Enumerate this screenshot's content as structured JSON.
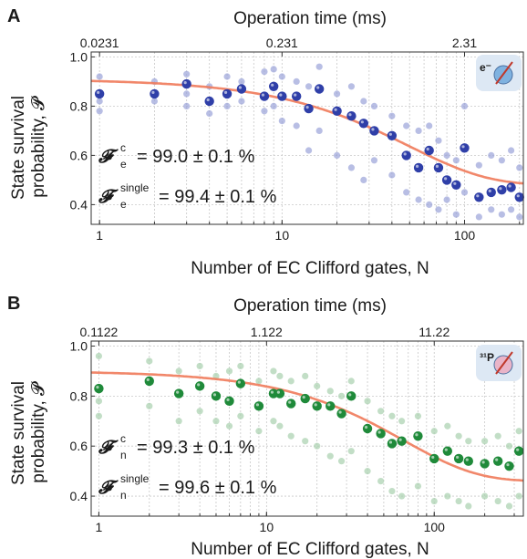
{
  "chart_data": [
    {
      "type": "scatter",
      "panel": "A",
      "top_axis_label": "Operation time (ms)",
      "top_tick_labels": [
        "0.0231",
        "0.231",
        "2.31"
      ],
      "top_tick_positions_N": [
        1,
        10,
        100
      ],
      "xlabel": "Number of EC Clifford gates, N",
      "x_scale": "log",
      "xlim": [
        0.9,
        210
      ],
      "x_tick_labels": [
        "1",
        "10",
        "100"
      ],
      "ylabel_line1": "State survival",
      "ylabel_line2": "probability, 𝓟",
      "ylim": [
        0.32,
        1.02
      ],
      "y_tick_labels": [
        "0.4",
        "0.6",
        "0.8",
        "1.0"
      ],
      "y_ticks": [
        0.4,
        0.6,
        0.8,
        1.0
      ],
      "grid": true,
      "fit": {
        "A": 0.43,
        "B": 0.09,
        "p": 0.98,
        "color": "#f07a5a"
      },
      "annotations": [
        {
          "symbol": "𝓕",
          "sub": "e",
          "sup": "c",
          "value": "= 99.0 ± 0.1 %"
        },
        {
          "symbol": "𝓕",
          "sub": "e",
          "sup": "single",
          "value": "= 99.4 ± 0.1 %"
        }
      ],
      "badge": {
        "icon": "electron-spin-icon",
        "label": "e⁻"
      },
      "mean_color": "#2f3fa8",
      "sample_color": "#9aa2d8",
      "series": [
        {
          "name": "mean",
          "x": [
            1,
            2,
            3,
            4,
            5,
            6,
            8,
            9,
            10,
            12,
            14,
            16,
            20,
            24,
            28,
            32,
            40,
            48,
            56,
            64,
            72,
            80,
            90,
            100,
            120,
            140,
            160,
            180,
            200
          ],
          "y": [
            0.85,
            0.85,
            0.89,
            0.82,
            0.85,
            0.87,
            0.84,
            0.88,
            0.84,
            0.84,
            0.79,
            0.87,
            0.78,
            0.76,
            0.73,
            0.7,
            0.68,
            0.6,
            0.55,
            0.62,
            0.55,
            0.5,
            0.48,
            0.63,
            0.43,
            0.45,
            0.46,
            0.47,
            0.43
          ]
        },
        {
          "name": "samples",
          "x": [
            1,
            1,
            1,
            2,
            2,
            3,
            3,
            3,
            4,
            4,
            5,
            5,
            6,
            6,
            8,
            8,
            9,
            9,
            10,
            10,
            12,
            12,
            14,
            14,
            16,
            16,
            20,
            20,
            24,
            24,
            28,
            28,
            32,
            32,
            40,
            40,
            48,
            48,
            56,
            56,
            64,
            64,
            72,
            72,
            80,
            80,
            90,
            90,
            100,
            100,
            120,
            120,
            140,
            140,
            160,
            160,
            180,
            180,
            200,
            200
          ],
          "y": [
            0.92,
            0.82,
            0.78,
            0.9,
            0.82,
            0.93,
            0.85,
            0.8,
            0.88,
            0.77,
            0.92,
            0.8,
            0.9,
            0.82,
            0.94,
            0.78,
            0.95,
            0.8,
            0.92,
            0.74,
            0.9,
            0.72,
            0.88,
            0.62,
            0.96,
            0.7,
            0.85,
            0.6,
            0.88,
            0.55,
            0.82,
            0.5,
            0.8,
            0.58,
            0.76,
            0.52,
            0.72,
            0.45,
            0.7,
            0.42,
            0.72,
            0.4,
            0.66,
            0.38,
            0.6,
            0.42,
            0.58,
            0.36,
            0.8,
            0.45,
            0.56,
            0.35,
            0.6,
            0.38,
            0.58,
            0.36,
            0.62,
            0.38,
            0.55,
            0.35
          ]
        }
      ]
    },
    {
      "type": "scatter",
      "panel": "B",
      "top_axis_label": "Operation time (ms)",
      "top_tick_labels": [
        "0.1122",
        "1.122",
        "11.22"
      ],
      "top_tick_positions_N": [
        1,
        10,
        100
      ],
      "xlabel": "Number of EC Clifford gates, N",
      "x_scale": "log",
      "xlim": [
        0.9,
        340
      ],
      "x_tick_labels": [
        "1",
        "10",
        "100"
      ],
      "ylabel_line1": "State survival",
      "ylabel_line2": "probability, 𝓟",
      "ylim": [
        0.32,
        1.02
      ],
      "y_tick_labels": [
        "0.4",
        "0.6",
        "0.8",
        "1.0"
      ],
      "y_ticks": [
        0.4,
        0.6,
        0.8,
        1.0
      ],
      "grid": true,
      "fit": {
        "A": 0.44,
        "B": 0.06,
        "p": 0.985,
        "color": "#f07a5a"
      },
      "annotations": [
        {
          "symbol": "𝓕",
          "sub": "n",
          "sup": "c",
          "value": "= 99.3 ± 0.1 %"
        },
        {
          "symbol": "𝓕",
          "sub": "n",
          "sup": "single",
          "value": "= 99.6 ± 0.1 %"
        }
      ],
      "badge": {
        "icon": "nuclear-spin-icon",
        "label": "³¹P"
      },
      "mean_color": "#1f8a3a",
      "sample_color": "#a8d0ae",
      "series": [
        {
          "name": "mean",
          "x": [
            1,
            2,
            3,
            4,
            5,
            6,
            7,
            9,
            11,
            12,
            14,
            17,
            20,
            24,
            28,
            32,
            40,
            48,
            56,
            64,
            80,
            100,
            120,
            140,
            160,
            200,
            240,
            280,
            320
          ],
          "y": [
            0.83,
            0.86,
            0.81,
            0.84,
            0.8,
            0.78,
            0.85,
            0.76,
            0.81,
            0.81,
            0.77,
            0.79,
            0.76,
            0.76,
            0.73,
            0.8,
            0.67,
            0.65,
            0.61,
            0.62,
            0.64,
            0.55,
            0.58,
            0.55,
            0.54,
            0.53,
            0.54,
            0.52,
            0.58
          ]
        },
        {
          "name": "samples",
          "x": [
            1,
            1,
            1,
            2,
            2,
            3,
            3,
            4,
            4,
            5,
            5,
            6,
            6,
            7,
            7,
            9,
            9,
            11,
            11,
            12,
            12,
            14,
            14,
            17,
            17,
            20,
            20,
            24,
            24,
            28,
            28,
            32,
            32,
            40,
            40,
            48,
            48,
            56,
            56,
            64,
            64,
            80,
            80,
            100,
            100,
            120,
            120,
            140,
            140,
            160,
            160,
            200,
            200,
            240,
            240,
            280,
            280,
            320,
            320
          ],
          "y": [
            0.96,
            0.78,
            0.72,
            0.94,
            0.76,
            0.9,
            0.7,
            0.92,
            0.74,
            0.88,
            0.7,
            0.9,
            0.68,
            0.92,
            0.72,
            0.86,
            0.66,
            0.9,
            0.7,
            0.88,
            0.68,
            0.86,
            0.64,
            0.88,
            0.62,
            0.84,
            0.6,
            0.82,
            0.56,
            0.8,
            0.54,
            0.86,
            0.58,
            0.78,
            0.5,
            0.74,
            0.46,
            0.72,
            0.42,
            0.7,
            0.4,
            0.72,
            0.44,
            0.66,
            0.38,
            0.68,
            0.4,
            0.64,
            0.38,
            0.62,
            0.36,
            0.62,
            0.4,
            0.64,
            0.38,
            0.6,
            0.36,
            0.66,
            0.4
          ]
        }
      ]
    }
  ]
}
